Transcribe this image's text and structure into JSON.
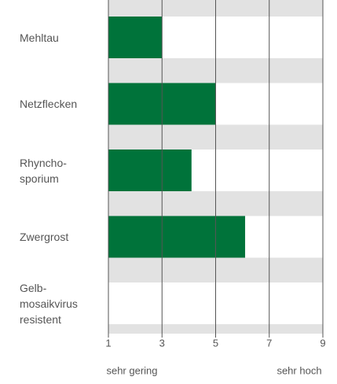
{
  "chart_data": {
    "type": "bar",
    "orientation": "horizontal",
    "categories": [
      "Mehltau",
      "Netzflecken",
      "Rhyncho-\nsporium",
      "Zwergrost",
      "Gelb-\nmosaikvirus\nresistent"
    ],
    "values": [
      3,
      5,
      4.1,
      6.1,
      null
    ],
    "color": "#00733a",
    "xlim": [
      1,
      9
    ],
    "xticks": [
      1,
      3,
      5,
      7,
      9
    ],
    "grid": true,
    "x_low_label": "sehr gering",
    "x_high_label": "sehr hoch"
  }
}
